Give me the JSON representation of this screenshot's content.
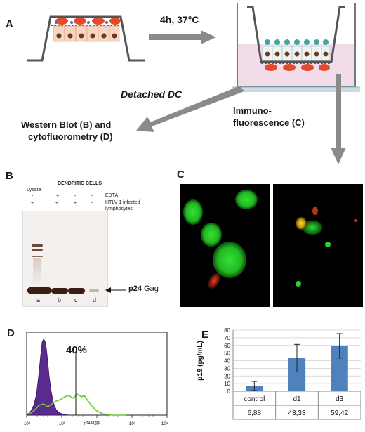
{
  "panel_labels": {
    "a": "A",
    "b": "B",
    "c": "C",
    "d": "D",
    "e": "E"
  },
  "panel_a": {
    "arrow_label": "4h, 37°C",
    "detached_label": "Detached DC",
    "left_output": [
      "Western Blot (B) and",
      "cytofluorometry (D)"
    ],
    "right_output": [
      "Immuno-",
      "fluorescence (C)"
    ]
  },
  "panel_b": {
    "header": "DENDRITIC CELLS",
    "lysate_label": "Lysate",
    "edta_label": "EDTA",
    "htlv_label": [
      "HTLV-1 infected",
      "lymphocytes"
    ],
    "edta_signs": [
      "-",
      "+",
      "-",
      "-"
    ],
    "htlv_signs": [
      "+",
      "+",
      "+",
      "-"
    ],
    "lanes": [
      "a",
      "b",
      "c",
      "d"
    ],
    "band_label_bold": "p24",
    "band_label_rest": " Gag",
    "colors": {
      "band": "#3a1e12",
      "background": "#f3f0ed"
    }
  },
  "panel_c": {
    "colors": {
      "green": "#2bd02b",
      "red": "#e02a1a",
      "background": "#000000"
    }
  },
  "panel_d": {
    "percent_label": "40%",
    "x_axis_label": "p24-FITC",
    "x_ticks": [
      "10⁰",
      "10¹",
      "10²",
      "10³",
      "10⁴"
    ],
    "colors": {
      "filled": "#5a2a8c",
      "outline": "#66cc33"
    }
  },
  "chart_data": {
    "type": "bar",
    "categories": [
      "control",
      "d1",
      "d3"
    ],
    "values": [
      6.88,
      43.33,
      59.42
    ],
    "value_labels": [
      "6,88",
      "43,33",
      "59,42"
    ],
    "error": [
      6,
      18,
      16
    ],
    "ylabel": "p19 (pg/mL)",
    "ylim": [
      0,
      80
    ],
    "yticks": [
      "0",
      "10",
      "20",
      "30",
      "40",
      "50",
      "60",
      "70",
      "80"
    ],
    "grid": true,
    "colors": {
      "bar": "#4f81bd"
    }
  }
}
